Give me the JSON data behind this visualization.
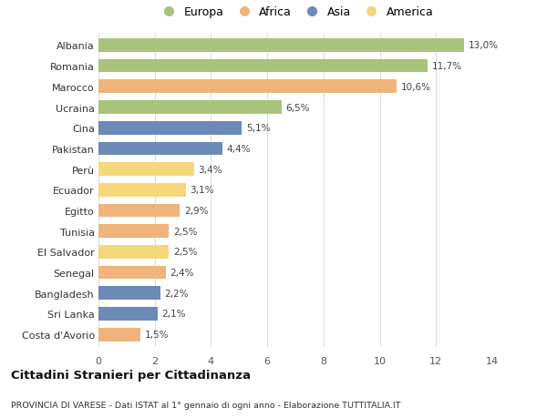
{
  "countries": [
    "Albania",
    "Romania",
    "Marocco",
    "Ucraina",
    "Cina",
    "Pakistan",
    "Perù",
    "Ecuador",
    "Egitto",
    "Tunisia",
    "El Salvador",
    "Senegal",
    "Bangladesh",
    "Sri Lanka",
    "Costa d'Avorio"
  ],
  "values": [
    13.0,
    11.7,
    10.6,
    6.5,
    5.1,
    4.4,
    3.4,
    3.1,
    2.9,
    2.5,
    2.5,
    2.4,
    2.2,
    2.1,
    1.5
  ],
  "labels": [
    "13,0%",
    "11,7%",
    "10,6%",
    "6,5%",
    "5,1%",
    "4,4%",
    "3,4%",
    "3,1%",
    "2,9%",
    "2,5%",
    "2,5%",
    "2,4%",
    "2,2%",
    "2,1%",
    "1,5%"
  ],
  "continents": [
    "Europa",
    "Europa",
    "Africa",
    "Europa",
    "Asia",
    "Asia",
    "America",
    "America",
    "Africa",
    "Africa",
    "America",
    "Africa",
    "Asia",
    "Asia",
    "Africa"
  ],
  "continent_colors": {
    "Europa": "#a8c47a",
    "Africa": "#f0b47a",
    "Asia": "#6b8ab8",
    "America": "#f5d87a"
  },
  "legend_order": [
    "Europa",
    "Africa",
    "Asia",
    "America"
  ],
  "xlim": [
    0,
    14
  ],
  "xticks": [
    0,
    2,
    4,
    6,
    8,
    10,
    12,
    14
  ],
  "title": "Cittadini Stranieri per Cittadinanza",
  "subtitle": "PROVINCIA DI VARESE - Dati ISTAT al 1° gennaio di ogni anno - Elaborazione TUTTITALIA.IT",
  "background_color": "#ffffff",
  "grid_color": "#dddddd"
}
